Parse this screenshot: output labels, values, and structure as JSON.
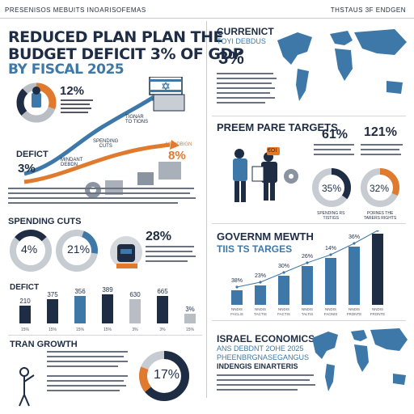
{
  "header": {
    "left_caption": "PRESENISOS MEBUITS INOARISOFEMAS",
    "right_caption": "THSTAUS 3F ENDGEN"
  },
  "left": {
    "headline": {
      "line1": "REDUCED PLAN PLAN THE",
      "line2": "BUDGET DEFICIT 3% OF GDP",
      "line3": "BY FISCAL 2025"
    },
    "donut_percent": "12%",
    "deficit_label": "DEFICT",
    "deficit_value": "3%",
    "path_labels": {
      "mindant": "MINDANT\nDEBDN",
      "spending_cuts": "SPENDING\nCUTS",
      "towards": "TIGNAR\nTO TIONS",
      "reduction_label": "MENDBIGN",
      "reduction_value": "8%"
    },
    "spending": {
      "title": "SPENDING CUTS",
      "left_value": "4%",
      "right_value": "21%",
      "big_value": "28%"
    },
    "deficit_bars": {
      "title": "DEFICT",
      "values": [
        "210",
        "375",
        "356",
        "389",
        "630",
        "665",
        "3%"
      ],
      "labels": [
        "15%",
        "15%",
        "15%",
        "15%",
        "3%",
        "3%",
        "15%"
      ]
    },
    "growth": {
      "title": "TRAN GROWTH",
      "donut_value": "17%"
    }
  },
  "right": {
    "current": {
      "title": "CURRENICT",
      "subtitle": "TOYI DEBDUS",
      "value": "3%"
    },
    "preem": {
      "title": "PREEM PARE TARGETS",
      "stat1": "61%",
      "stat2": "121%",
      "ring1": "35%",
      "ring2": "32%",
      "ring1_label": "SPENDING RS\nTISTIGS",
      "ring2_label": "PORNES THE\nTARERS RIGHTS",
      "chip_label": "€OI"
    },
    "govt": {
      "title_line1": "GOVERNM MEWTH",
      "title_line2": "TIIS TS TARGES",
      "values": [
        "38%",
        "23%",
        "30%",
        "26%",
        "14%",
        "36%",
        "67%"
      ],
      "labels": [
        "NNDIS\nFACLIS",
        "NNDIS\nTACTIS",
        "NNDIS\nFACTIS",
        "NNDIS\nTALTIS",
        "NNDIS\nFAONIS",
        "NNDIS\nFRONTE",
        "NNDIS\nFRONTE"
      ]
    },
    "israel": {
      "title": "ISRAEL ECONOMICS",
      "line2": "ANS DEBDNT 2OHE 2025",
      "line3": "PHEENBRGNASEGANGUS",
      "line4": "INDENGIS EINARTERIS"
    }
  },
  "colors": {
    "navy": "#1f2d44",
    "blue": "#3d78a8",
    "orange": "#e07a2e",
    "gray": "#b9bec5"
  }
}
